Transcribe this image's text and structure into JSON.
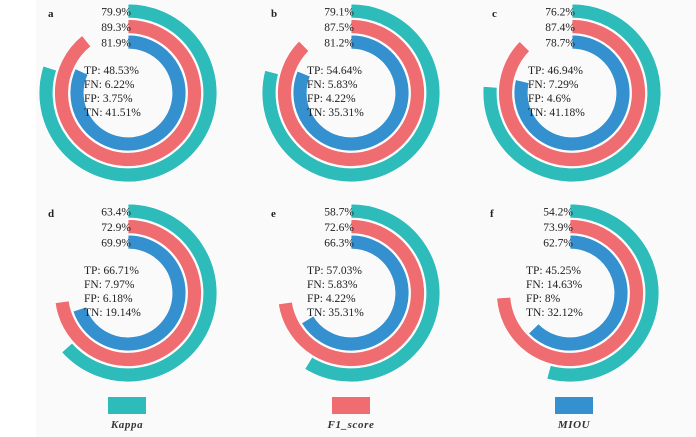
{
  "chart_data": {
    "type": "radial_bar",
    "title": "",
    "colors": {
      "Kappa": "#2dbcba",
      "F1_score": "#ef6d71",
      "MIOU": "#3590cf"
    },
    "series_order": [
      "Kappa",
      "F1_score",
      "MIOU"
    ],
    "legend": {
      "placement": "bottom",
      "entries": [
        "Kappa",
        "F1_score",
        "MIOU"
      ]
    },
    "panels": [
      {
        "label": "a",
        "values": {
          "Kappa": 79.9,
          "F1_score": 89.3,
          "MIOU": 81.9
        },
        "value_labels": [
          "79.9%",
          "89.3%",
          "81.9%"
        ],
        "confusion": [
          "TP: 48.53%",
          "FN: 6.22%",
          "FP: 3.75%",
          "TN: 41.51%"
        ]
      },
      {
        "label": "b",
        "values": {
          "Kappa": 79.1,
          "F1_score": 87.5,
          "MIOU": 81.2
        },
        "value_labels": [
          "79.1%",
          "87.5%",
          "81.2%"
        ],
        "confusion": [
          "TP: 54.64%",
          "FN: 5.83%",
          "FP: 4.22%",
          "TN: 35.31%"
        ]
      },
      {
        "label": "c",
        "values": {
          "Kappa": 76.2,
          "F1_score": 87.4,
          "MIOU": 78.7
        },
        "value_labels": [
          "76.2%",
          "87.4%",
          "78.7%"
        ],
        "confusion": [
          "TP: 46.94%",
          "FN: 7.29%",
          "FP: 4.6%",
          "TN: 41.18%"
        ]
      },
      {
        "label": "d",
        "values": {
          "Kappa": 63.4,
          "F1_score": 72.9,
          "MIOU": 69.9
        },
        "value_labels": [
          "63.4%",
          "72.9%",
          "69.9%"
        ],
        "confusion": [
          "TP: 66.71%",
          "FN: 7.97%",
          "FP: 6.18%",
          "TN: 19.14%"
        ]
      },
      {
        "label": "e",
        "values": {
          "Kappa": 58.7,
          "F1_score": 72.6,
          "MIOU": 66.3
        },
        "value_labels": [
          "58.7%",
          "72.6%",
          "66.3%"
        ],
        "confusion": [
          "TP: 57.03%",
          "FN: 5.83%",
          "FP: 4.22%",
          "TN: 35.31%"
        ]
      },
      {
        "label": "f",
        "values": {
          "Kappa": 54.2,
          "F1_score": 73.9,
          "MIOU": 62.7
        },
        "value_labels": [
          "54.2%",
          "73.9%",
          "62.7%"
        ],
        "confusion": [
          "TP: 45.25%",
          "FN: 14.63%",
          "FP: 8%",
          "TN: 32.12%"
        ]
      }
    ],
    "value_range": [
      0,
      100
    ]
  }
}
